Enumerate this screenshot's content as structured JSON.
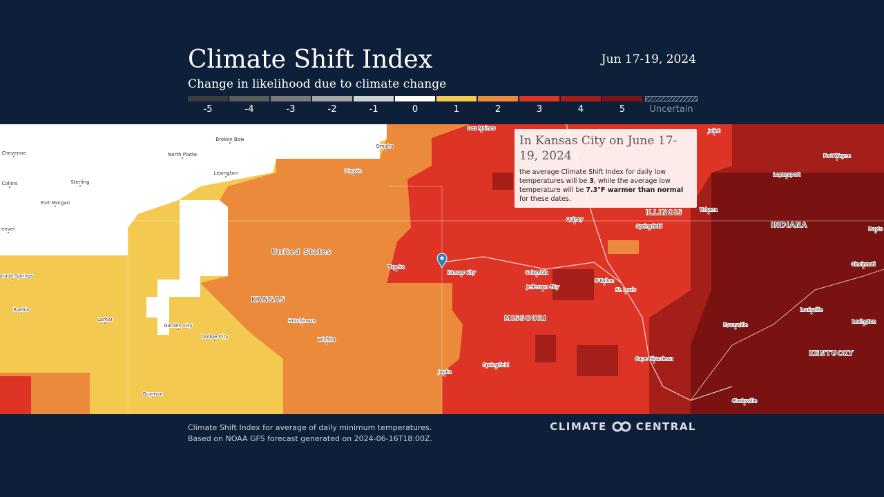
{
  "header": {
    "title": "Climate Shift Index",
    "subtitle": "Change in likelihood due to climate change",
    "date": "Jun 17-19, 2024"
  },
  "legend": {
    "items": [
      {
        "value": -5,
        "color": "#3d3d3d"
      },
      {
        "value": -4,
        "color": "#5a5a5a"
      },
      {
        "value": -3,
        "color": "#7a7a7a"
      },
      {
        "value": -2,
        "color": "#a6a6a6"
      },
      {
        "value": -1,
        "color": "#d0d0d0"
      },
      {
        "value": 0,
        "color": "#ffffff"
      },
      {
        "value": 1,
        "color": "#f4c94f"
      },
      {
        "value": 2,
        "color": "#ec8a3c"
      },
      {
        "value": 3,
        "color": "#de3426"
      },
      {
        "value": 4,
        "color": "#a51f1a"
      },
      {
        "value": 5,
        "color": "#7d1414"
      }
    ],
    "uncertain": "Uncertain"
  },
  "map": {
    "cities": [
      "Des Moines",
      "Omaha",
      "Lincoln",
      "Kansas City",
      "Topeka",
      "Wichita",
      "Springfield",
      "St. Louis",
      "Columbia",
      "Jefferson City",
      "Joplin",
      "Quincy",
      "Springfield",
      "Urbana",
      "Fort Wayne",
      "Logansport",
      "Evansville",
      "Louisville",
      "Lexington",
      "Cincinnati",
      "Clarksville",
      "Cape Girardeau",
      "Hutchinson",
      "Dodge City",
      "Garden City",
      "Lamar",
      "Pueblo",
      "Colorado Springs",
      "enver",
      "Fort Morgan",
      "Sterling",
      "Collins",
      "Cheyenne",
      "North Platte",
      "Broken Bow",
      "Lexington",
      "Guymon",
      "O'Fallon",
      "Joliet",
      "Dayto"
    ],
    "regions": [
      "United States",
      "KANSAS",
      "MISSOURI",
      "ILLINOIS",
      "INDIANA",
      "KENTUCKY"
    ]
  },
  "tooltip": {
    "title": "In Kansas City on June 17-19, 2024",
    "body": [
      "the average Climate Shift Index for daily low temperatures will be ",
      "3",
      ", while the average low temperature will be ",
      "7.3°F warmer than normal",
      " for these dates."
    ]
  },
  "footer": {
    "lines": [
      "Climate Shift Index for average of daily minimum temperatures.",
      "Based on NOAA GFS forecast generated on 2024-06-16T18:00Z."
    ],
    "logo": [
      "CLIMATE",
      "CENTRAL"
    ]
  }
}
